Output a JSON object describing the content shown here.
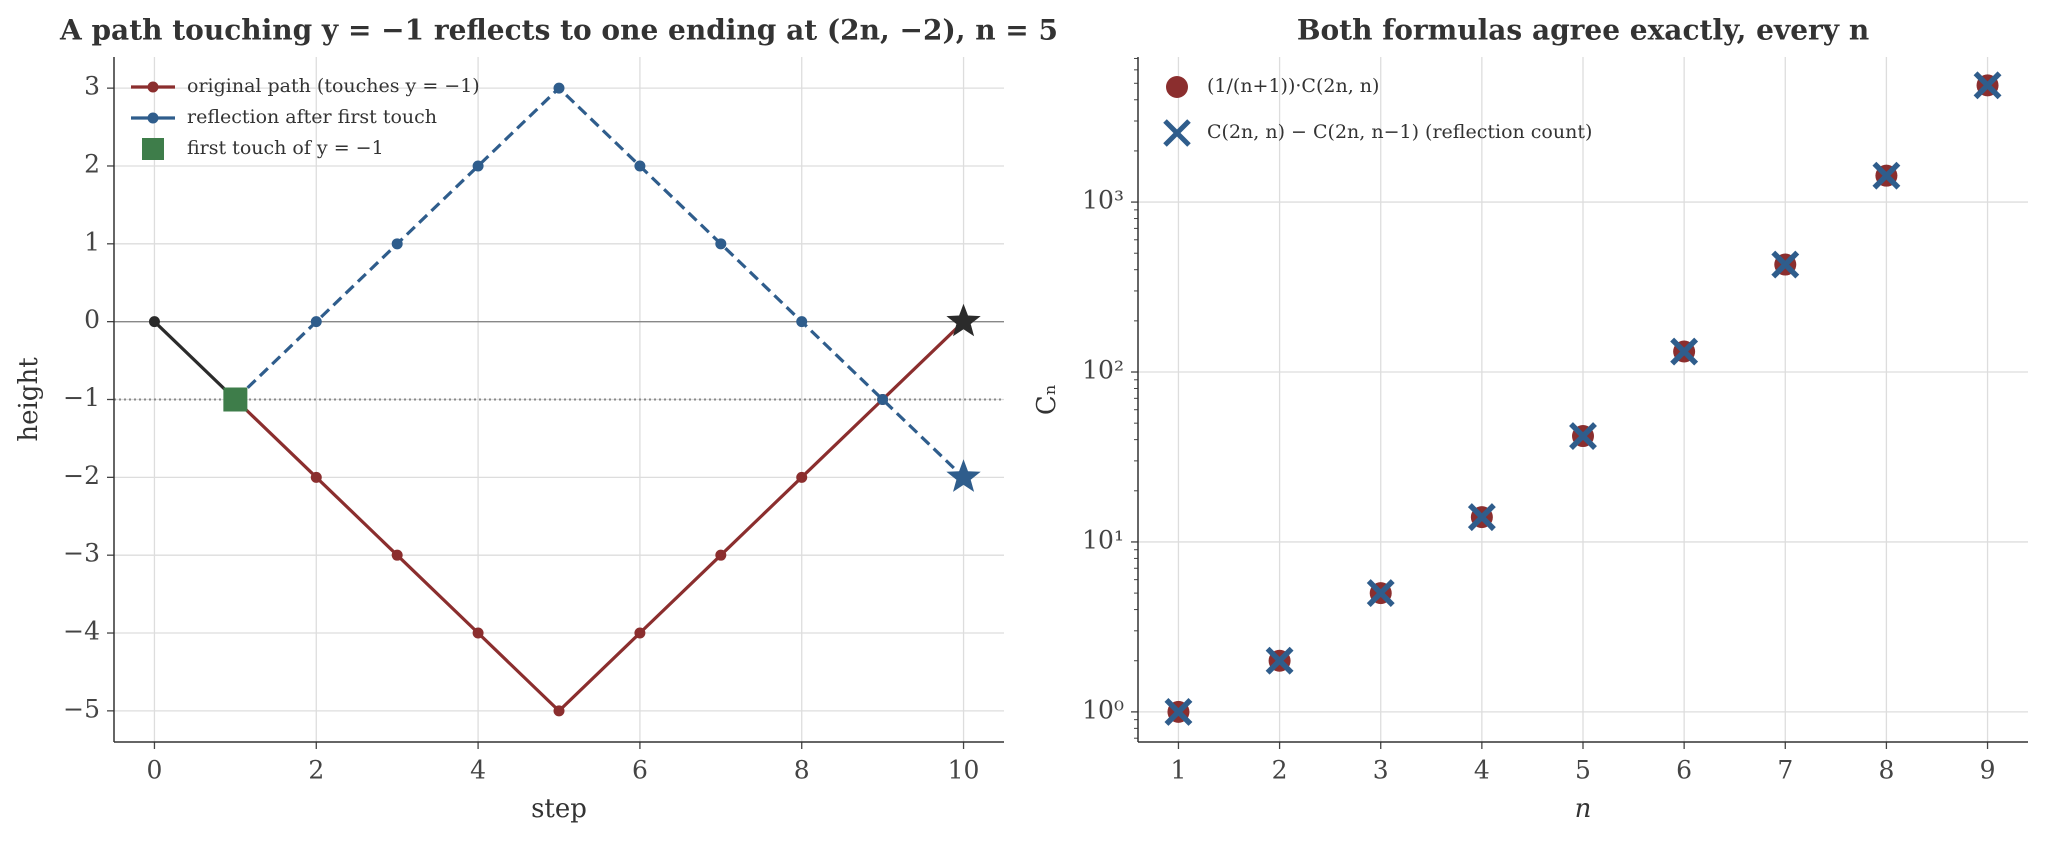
{
  "chart_data": [
    {
      "type": "line",
      "title": "A path touching y = −1 reflects to one ending at (2n, −2), n = 5",
      "x_label": "step",
      "y_label": "height",
      "x": [
        0,
        1,
        2,
        3,
        4,
        5,
        6,
        7,
        8,
        9,
        10
      ],
      "series": [
        {
          "name": "original path (touches y = −1)",
          "color": "#8b2e2e",
          "pre_touch_color": "#2b2b2b",
          "style": "solid",
          "marker": "o",
          "end_marker": "star",
          "end_color": "#2b2b2b",
          "values": [
            0,
            -1,
            -2,
            -3,
            -4,
            -5,
            -4,
            -3,
            -2,
            -1,
            0
          ]
        },
        {
          "name": "reflection after first touch",
          "color": "#2f5d8c",
          "style": "dashed",
          "marker": "o",
          "end_marker": "star",
          "end_color": "#2f5d8c",
          "values": [
            null,
            -1,
            0,
            1,
            2,
            3,
            2,
            1,
            0,
            -1,
            -2
          ]
        },
        {
          "name": "first touch of y = −1",
          "color": "#3e7d4a",
          "style": "none",
          "marker": "square",
          "values": [
            null,
            -1,
            null,
            null,
            null,
            null,
            null,
            null,
            null,
            null,
            null
          ]
        }
      ],
      "hlines": [
        {
          "value": 0,
          "style": "solid"
        },
        {
          "value": -1,
          "style": "dotted"
        }
      ],
      "xlim": [
        -0.5,
        10.5
      ],
      "xticks": [
        0,
        2,
        4,
        6,
        8,
        10
      ],
      "ylim": [
        -5.4,
        3.4
      ],
      "yticks": [
        {
          "value": -5,
          "label": "−5"
        },
        {
          "value": -4,
          "label": "−4"
        },
        {
          "value": -3,
          "label": "−3"
        },
        {
          "value": -2,
          "label": "−2"
        },
        {
          "value": -1,
          "label": "−1"
        },
        0,
        1,
        2,
        3
      ],
      "grid": true,
      "legend": "upper left"
    },
    {
      "type": "scatter",
      "title": "Both formulas agree exactly, every n",
      "x_label": "n",
      "y_label": "Cₙ",
      "x": [
        1,
        2,
        3,
        4,
        5,
        6,
        7,
        8,
        9
      ],
      "series": [
        {
          "name": "(1/(n+1))·C(2n, n)",
          "color": "#8b2e2e",
          "marker": "o",
          "values": [
            1,
            2,
            5,
            14,
            42,
            132,
            429,
            1430,
            4862
          ]
        },
        {
          "name": "C(2n, n) − C(2n, n−1) (reflection count)",
          "color": "#2f5d8c",
          "marker": "x",
          "values": [
            1,
            2,
            5,
            14,
            42,
            132,
            429,
            1430,
            4862
          ]
        }
      ],
      "log_y": true,
      "xlim": [
        0.6,
        9.4
      ],
      "xticks": [
        1,
        2,
        3,
        4,
        5,
        6,
        7,
        8,
        9
      ],
      "ylim": [
        0.665,
        7140
      ],
      "yticks": [
        {
          "value": 1,
          "label": "10⁰"
        },
        {
          "value": 10,
          "label": "10¹"
        },
        {
          "value": 100,
          "label": "10²"
        },
        {
          "value": 1000,
          "label": "10³"
        }
      ],
      "grid": true,
      "legend": "upper left"
    }
  ]
}
